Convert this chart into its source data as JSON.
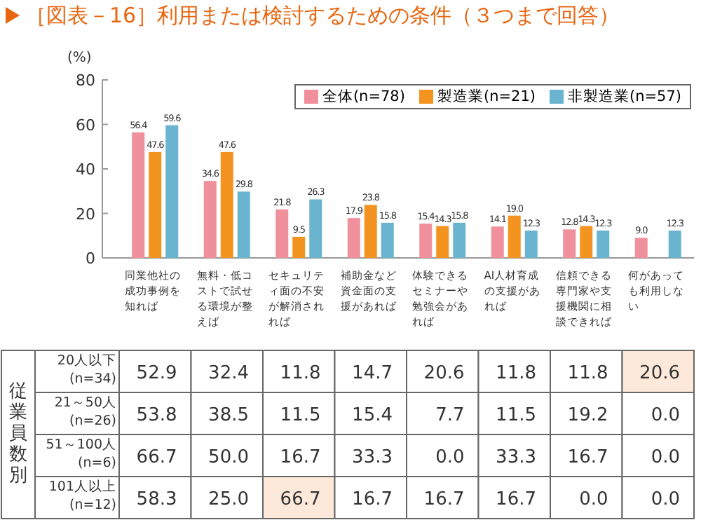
{
  "chart_data": [
    {
      "type": "bar",
      "title": "［図表－16］利用または検討するための条件（３つまで回答）",
      "ylabel": "(%)",
      "categories": [
        "同業他社の成功事例を知れば",
        "無料・低コストで試せる環境が整えば",
        "セキュリティ面の不安が解消されれば",
        "補助金など資金面の支援があれば",
        "体験できるセミナーや勉強会があれば",
        "AI人材育成の支援があれば",
        "信頼できる専門家や支援機関に相談できれば",
        "何があっても利用しない"
      ],
      "series": [
        {
          "name": "全体(n=78)",
          "color": "#f0909c",
          "values": [
            56.4,
            34.6,
            21.8,
            17.9,
            15.4,
            14.1,
            12.8,
            9.0
          ],
          "value_labels": [
            "56.4",
            "34.6",
            "21.8",
            "17.9",
            "15.4",
            "14.1",
            "12.8",
            "9.0"
          ]
        },
        {
          "name": "製造業(n=21)",
          "color": "#f39421",
          "values": [
            47.6,
            47.6,
            9.5,
            23.8,
            14.3,
            19.0,
            14.3,
            null
          ],
          "value_labels": [
            "47.6",
            "47.6",
            "9.5",
            "23.8",
            "14.3",
            "19.0",
            "14.3",
            null
          ]
        },
        {
          "name": "非製造業(n=57)",
          "color": "#6ab4cf",
          "values": [
            59.6,
            29.8,
            26.3,
            15.8,
            15.8,
            12.3,
            12.3,
            12.3
          ],
          "value_labels": [
            "59.6",
            "29.8",
            "26.3",
            "15.8",
            "15.8",
            "12.3",
            "12.3",
            "12.3"
          ]
        }
      ],
      "ylim": [
        0,
        80
      ],
      "yticks": [
        0,
        20,
        40,
        60,
        80
      ],
      "legend": "top right",
      "grid": false
    },
    {
      "type": "heatmap",
      "ylabel": "従業員数別",
      "categories": [
        null,
        null,
        null,
        null,
        null,
        null,
        null,
        null
      ],
      "y_categories": [
        "20人以下(n=34)",
        "21～50人(n=26)",
        "51～100人(n=6)",
        "101人以上(n=12)"
      ],
      "cells": [
        [
          52.9,
          32.4,
          11.8,
          14.7,
          20.6,
          11.8,
          11.8,
          20.6
        ],
        [
          53.8,
          38.5,
          11.5,
          15.4,
          7.7,
          11.5,
          19.2,
          0.0
        ],
        [
          66.7,
          50.0,
          16.7,
          33.3,
          0.0,
          33.3,
          16.7,
          0.0
        ],
        [
          58.3,
          25.0,
          66.7,
          16.7,
          16.7,
          16.7,
          0.0,
          0.0
        ]
      ],
      "cell_labels": [
        [
          "52.9",
          "32.4",
          "11.8",
          "14.7",
          "20.6",
          "11.8",
          "11.8",
          "20.6"
        ],
        [
          "53.8",
          "38.5",
          "11.5",
          "15.4",
          "7.7",
          "11.5",
          "19.2",
          "0.0"
        ],
        [
          "66.7",
          "50.0",
          "16.7",
          "33.3",
          "0.0",
          "33.3",
          "16.7",
          "0.0"
        ],
        [
          "58.3",
          "25.0",
          "66.7",
          "16.7",
          "16.7",
          "16.7",
          "0.0",
          "0.0"
        ]
      ],
      "colors": [
        [
          "#ffffff",
          "#ffffff",
          "#ffffff",
          "#ffffff",
          "#ffffff",
          "#ffffff",
          "#ffffff",
          "#fde9d9"
        ],
        [
          "#ffffff",
          "#ffffff",
          "#ffffff",
          "#ffffff",
          "#ffffff",
          "#ffffff",
          "#ffffff",
          "#ffffff"
        ],
        [
          "#ffffff",
          "#ffffff",
          "#ffffff",
          "#ffffff",
          "#ffffff",
          "#ffffff",
          "#ffffff",
          "#ffffff"
        ],
        [
          "#ffffff",
          "#ffffff",
          "#fde9d9",
          "#ffffff",
          "#ffffff",
          "#ffffff",
          "#ffffff",
          "#ffffff"
        ]
      ]
    }
  ]
}
